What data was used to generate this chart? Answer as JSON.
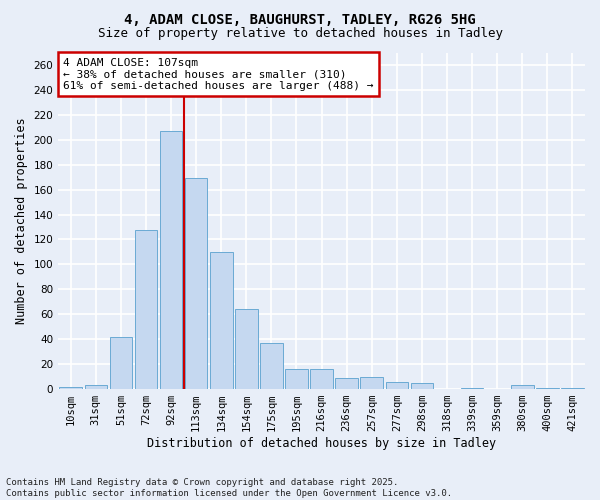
{
  "title1": "4, ADAM CLOSE, BAUGHURST, TADLEY, RG26 5HG",
  "title2": "Size of property relative to detached houses in Tadley",
  "xlabel": "Distribution of detached houses by size in Tadley",
  "ylabel": "Number of detached properties",
  "categories": [
    "10sqm",
    "31sqm",
    "51sqm",
    "72sqm",
    "92sqm",
    "113sqm",
    "134sqm",
    "154sqm",
    "175sqm",
    "195sqm",
    "216sqm",
    "236sqm",
    "257sqm",
    "277sqm",
    "298sqm",
    "318sqm",
    "339sqm",
    "359sqm",
    "380sqm",
    "400sqm",
    "421sqm"
  ],
  "values": [
    2,
    3,
    42,
    128,
    207,
    169,
    110,
    64,
    37,
    16,
    16,
    9,
    10,
    6,
    5,
    0,
    1,
    0,
    3,
    1,
    1
  ],
  "bar_color": "#c5d8f0",
  "bar_edge_color": "#6aaad4",
  "annotation_text": "4 ADAM CLOSE: 107sqm\n← 38% of detached houses are smaller (310)\n61% of semi-detached houses are larger (488) →",
  "annotation_box_color": "#ffffff",
  "annotation_box_edge_color": "#cc0000",
  "vline_color": "#cc0000",
  "vline_x": 5,
  "ylim": [
    0,
    270
  ],
  "yticks": [
    0,
    20,
    40,
    60,
    80,
    100,
    120,
    140,
    160,
    180,
    200,
    220,
    240,
    260
  ],
  "background_color": "#e8eef8",
  "grid_color": "#ffffff",
  "footer": "Contains HM Land Registry data © Crown copyright and database right 2025.\nContains public sector information licensed under the Open Government Licence v3.0.",
  "title_fontsize": 10,
  "subtitle_fontsize": 9,
  "axis_label_fontsize": 8.5,
  "tick_fontsize": 7.5,
  "footer_fontsize": 6.5
}
